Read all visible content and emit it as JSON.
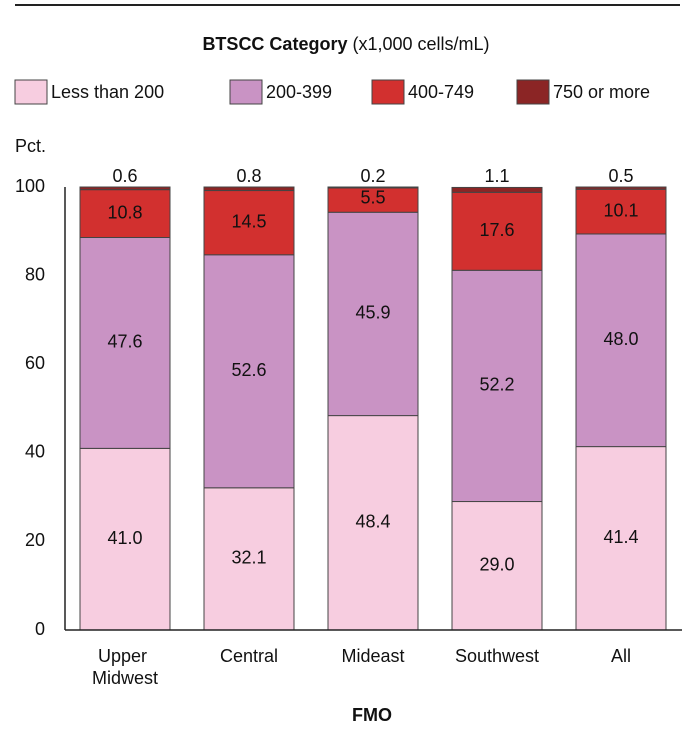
{
  "chart_data": {
    "type": "stacked_bar",
    "title": "BTSCC Category",
    "title_unit": "(x1,000 cells/mL)",
    "y_label": "Pct.",
    "x_label": "FMO",
    "categories": [
      "Upper Midwest",
      "Central",
      "Mideast",
      "Southwest",
      "All"
    ],
    "series": [
      {
        "name": "Less than 200",
        "color": "#f7cde0",
        "values": [
          41.0,
          32.1,
          48.4,
          29.0,
          41.4
        ],
        "value_labels": [
          "41.0",
          "32.1",
          "48.4",
          "29.0",
          "41.4"
        ]
      },
      {
        "name": "200-399",
        "color": "#c993c4",
        "values": [
          47.6,
          52.6,
          45.9,
          52.2,
          48.0
        ],
        "value_labels": [
          "47.6",
          "52.6",
          "45.9",
          "52.2",
          "48.0"
        ]
      },
      {
        "name": "400-749",
        "color": "#d2302f",
        "values": [
          10.8,
          14.5,
          5.5,
          17.6,
          10.1
        ],
        "value_labels": [
          "10.8",
          "14.5",
          "5.5",
          "17.6",
          "10.1"
        ]
      },
      {
        "name": "750 or more",
        "color": "#8b2525",
        "values": [
          0.6,
          0.8,
          0.2,
          1.1,
          0.5
        ],
        "value_labels": [
          "0.6",
          "0.8",
          "0.2",
          "1.1",
          "0.5"
        ]
      }
    ],
    "ylim": [
      0,
      100
    ],
    "yticks": [
      0,
      20,
      40,
      60,
      80,
      100
    ],
    "grid": false
  }
}
